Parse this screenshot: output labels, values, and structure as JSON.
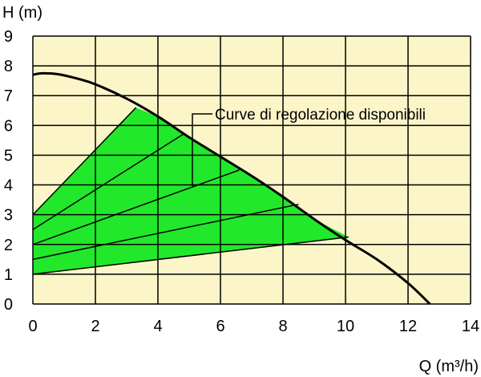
{
  "chart_data": {
    "type": "line",
    "title": "",
    "xlabel": "Q (m³/h)",
    "ylabel": "H (m)",
    "xlim": [
      0,
      14
    ],
    "ylim": [
      0,
      9
    ],
    "x_ticks": [
      0,
      2,
      4,
      6,
      8,
      10,
      12,
      14
    ],
    "y_ticks": [
      0,
      1,
      2,
      3,
      4,
      5,
      6,
      7,
      8,
      9
    ],
    "grid": true,
    "annotation": "Curve di regolazione disponibili",
    "colors": {
      "plot_background": "#fbf5c8",
      "region_fill": "#22e82b",
      "lines": "#000000"
    },
    "series": [
      {
        "x": [
          0,
          0.3,
          0.8,
          1.5,
          2,
          3,
          4,
          5,
          6,
          7,
          8,
          9,
          10,
          11,
          12,
          12.7
        ],
        "y": [
          7.7,
          7.75,
          7.72,
          7.55,
          7.38,
          6.9,
          6.3,
          5.6,
          4.95,
          4.3,
          3.6,
          2.85,
          2.15,
          1.5,
          0.7,
          0
        ]
      }
    ],
    "regulation_lines": [
      {
        "x": [
          0,
          3.3
        ],
        "y": [
          3.0,
          6.6
        ]
      },
      {
        "x": [
          0,
          4.8
        ],
        "y": [
          2.5,
          5.7
        ]
      },
      {
        "x": [
          0,
          6.6
        ],
        "y": [
          2.0,
          4.5
        ]
      },
      {
        "x": [
          0,
          8.5
        ],
        "y": [
          1.5,
          3.35
        ]
      },
      {
        "x": [
          0,
          10.1
        ],
        "y": [
          1.0,
          2.25
        ]
      }
    ],
    "regulation_region": {
      "x": [
        0,
        3.3,
        4,
        5,
        6,
        7,
        8,
        9,
        10.1,
        0
      ],
      "y": [
        3.0,
        6.6,
        6.3,
        5.6,
        4.95,
        4.3,
        3.6,
        2.85,
        2.25,
        1.0
      ]
    }
  }
}
